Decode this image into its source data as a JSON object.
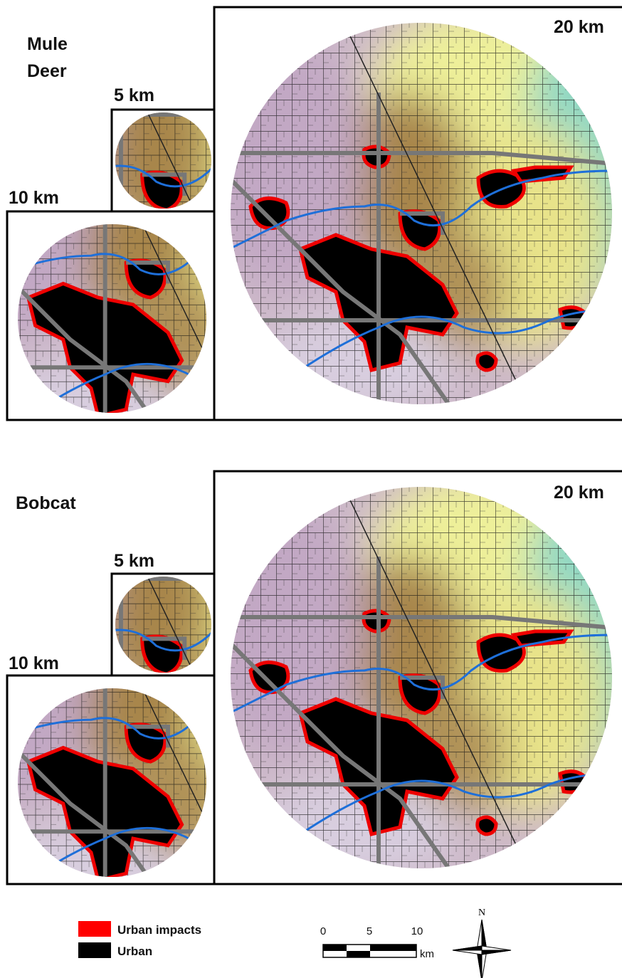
{
  "panels": [
    {
      "title": [
        "Mule",
        "Deer"
      ],
      "maps": {
        "small": "5 km",
        "medium": "10 km",
        "large": "20 km"
      }
    },
    {
      "title": [
        "Bobcat"
      ],
      "maps": {
        "small": "5 km",
        "medium": "10 km",
        "large": "20 km"
      }
    }
  ],
  "legend": [
    {
      "label": "Urban impacts"
    },
    {
      "label": "Urban"
    }
  ],
  "scale_bar": {
    "ticks": [
      "0",
      "5",
      "10"
    ],
    "unit": "km"
  },
  "north_arrow": "N"
}
